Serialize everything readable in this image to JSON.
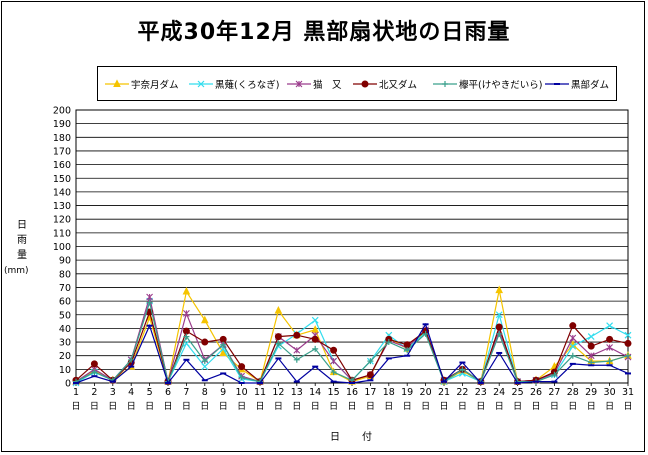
{
  "title": "平成30年12月  黒部扇状地の日雨量",
  "chart_data": {
    "type": "line",
    "title": "平成30年12月  黒部扇状地の日雨量",
    "xlabel": "日　付",
    "ylabel_chars": [
      "日",
      "雨",
      "量"
    ],
    "yunit": "(mm)",
    "ylim": [
      0,
      200
    ],
    "ytick_step": 10,
    "grid": true,
    "legend_position": "top",
    "x": [
      1,
      2,
      3,
      4,
      5,
      6,
      7,
      8,
      9,
      10,
      11,
      12,
      13,
      14,
      15,
      16,
      17,
      18,
      19,
      20,
      21,
      22,
      23,
      24,
      25,
      26,
      27,
      28,
      29,
      30,
      31
    ],
    "x_suffix": "日",
    "series": [
      {
        "name": "宇奈月ダム",
        "color": "#F5C400",
        "marker": "triangle",
        "values": [
          1,
          9,
          2,
          12,
          48,
          1,
          67,
          46,
          22,
          10,
          1,
          53,
          35,
          39,
          8,
          1,
          5,
          33,
          25,
          38,
          1,
          9,
          1,
          68,
          1,
          2,
          12,
          28,
          16,
          16,
          20
        ]
      },
      {
        "name": "黒薙(くろなぎ)",
        "color": "#33DDEE",
        "marker": "x",
        "values": [
          0,
          8,
          2,
          17,
          60,
          1,
          29,
          12,
          25,
          3,
          1,
          27,
          36,
          46,
          16,
          2,
          16,
          35,
          25,
          37,
          1,
          7,
          1,
          50,
          1,
          2,
          6,
          27,
          34,
          42,
          35
        ]
      },
      {
        "name": "猫　又",
        "color": "#9B3C8C",
        "marker": "star",
        "values": [
          1,
          10,
          2,
          17,
          63,
          1,
          51,
          17,
          28,
          5,
          1,
          34,
          24,
          35,
          16,
          2,
          6,
          31,
          26,
          39,
          2,
          10,
          1,
          38,
          1,
          2,
          7,
          33,
          20,
          26,
          19
        ]
      },
      {
        "name": "北又ダム",
        "color": "#800000",
        "marker": "circle",
        "values": [
          2,
          14,
          2,
          15,
          52,
          1,
          38,
          30,
          32,
          12,
          1,
          34,
          35,
          32,
          24,
          2,
          6,
          32,
          28,
          38,
          2,
          10,
          1,
          41,
          1,
          2,
          8,
          42,
          27,
          32,
          29
        ]
      },
      {
        "name": "欅平(けやきだいら)",
        "color": "#3AA08C",
        "marker": "plus",
        "values": [
          1,
          8,
          2,
          17,
          59,
          1,
          34,
          16,
          28,
          4,
          1,
          29,
          17,
          25,
          8,
          2,
          16,
          30,
          24,
          36,
          1,
          10,
          1,
          36,
          1,
          1,
          6,
          20,
          15,
          16,
          20
        ]
      },
      {
        "name": "黒部ダム",
        "color": "#0000A0",
        "marker": "dash",
        "values": [
          0,
          5,
          1,
          12,
          42,
          0,
          17,
          2,
          7,
          0,
          0,
          18,
          1,
          12,
          1,
          0,
          2,
          18,
          20,
          43,
          1,
          15,
          0,
          22,
          0,
          1,
          1,
          14,
          13,
          13,
          7
        ]
      }
    ]
  }
}
